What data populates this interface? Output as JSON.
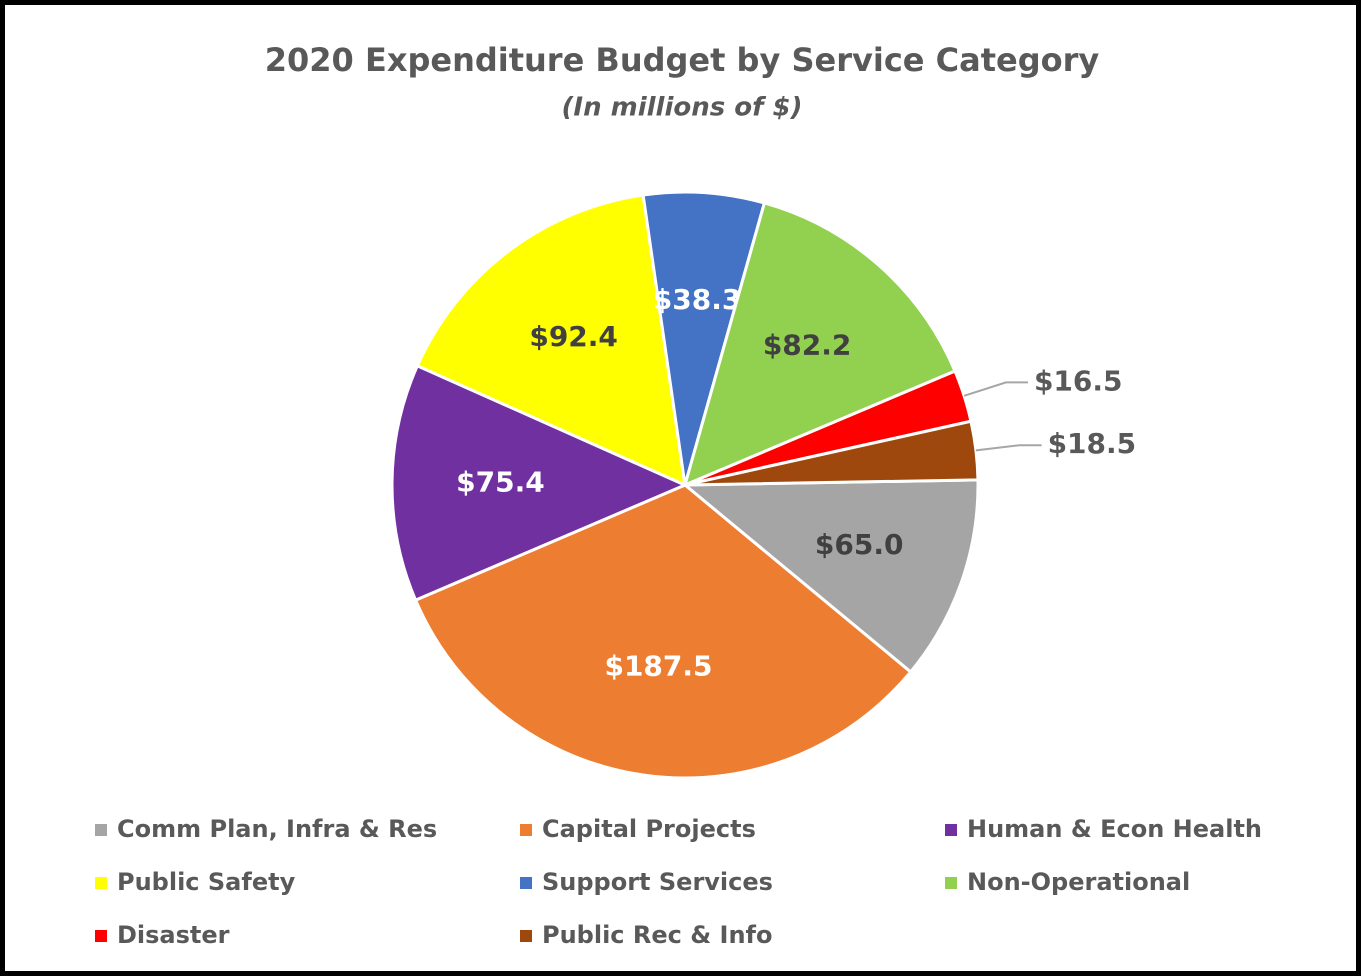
{
  "chart_data": {
    "type": "pie",
    "title": "2020 Expenditure Budget by Service Category",
    "subtitle": "(In millions of $)",
    "categories": [
      "Comm Plan, Infra & Res",
      "Capital Projects",
      "Human & Econ Health",
      "Public Safety",
      "Support Services",
      "Non-Operational",
      "Disaster",
      "Public Rec & Info"
    ],
    "values": [
      65.0,
      187.5,
      75.4,
      92.4,
      38.3,
      82.2,
      16.5,
      18.5
    ],
    "value_labels": [
      "$65.0",
      "$187.5",
      "$75.4",
      "$92.4",
      "$38.3",
      "$82.2",
      "$16.5",
      "$18.5"
    ],
    "colors": [
      "#a5a5a5",
      "#ed7d31",
      "#7030a0",
      "#ffff00",
      "#4472c4",
      "#92d050",
      "#ff0000",
      "#9e480e"
    ],
    "legend": "bottom"
  }
}
